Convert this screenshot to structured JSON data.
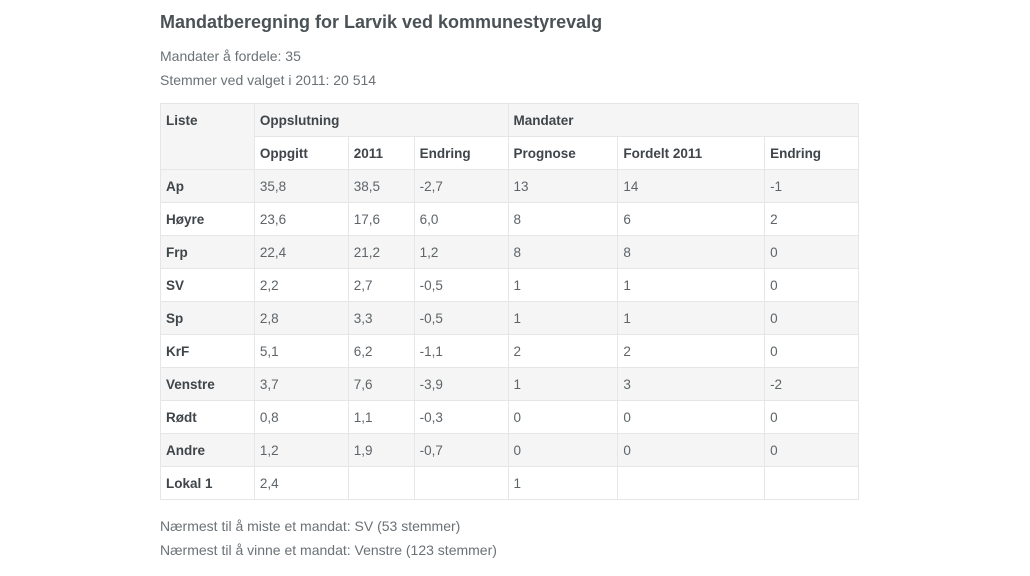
{
  "title": "Mandatberegning for Larvik ved kommunestyrevalg",
  "meta": {
    "seats": "Mandater å fordele: 35",
    "votes": "Stemmer ved valget i 2011: 20 514"
  },
  "table": {
    "header_top": {
      "liste": "Liste",
      "oppslutning": "Oppslutning",
      "mandater": "Mandater"
    },
    "header_sub": [
      "Oppgitt",
      "2011",
      "Endring",
      "Prognose",
      "Fordelt 2011",
      "Endring"
    ],
    "rows": [
      {
        "party": "Ap",
        "oppgitt": "35,8",
        "y2011": "38,5",
        "endring": "-2,7",
        "prognose": "13",
        "fordelt": "14",
        "mandat_endring": "-1"
      },
      {
        "party": "Høyre",
        "oppgitt": "23,6",
        "y2011": "17,6",
        "endring": "6,0",
        "prognose": "8",
        "fordelt": "6",
        "mandat_endring": "2"
      },
      {
        "party": "Frp",
        "oppgitt": "22,4",
        "y2011": "21,2",
        "endring": "1,2",
        "prognose": "8",
        "fordelt": "8",
        "mandat_endring": "0"
      },
      {
        "party": "SV",
        "oppgitt": "2,2",
        "y2011": "2,7",
        "endring": "-0,5",
        "prognose": "1",
        "fordelt": "1",
        "mandat_endring": "0"
      },
      {
        "party": "Sp",
        "oppgitt": "2,8",
        "y2011": "3,3",
        "endring": "-0,5",
        "prognose": "1",
        "fordelt": "1",
        "mandat_endring": "0"
      },
      {
        "party": "KrF",
        "oppgitt": "5,1",
        "y2011": "6,2",
        "endring": "-1,1",
        "prognose": "2",
        "fordelt": "2",
        "mandat_endring": "0"
      },
      {
        "party": "Venstre",
        "oppgitt": "3,7",
        "y2011": "7,6",
        "endring": "-3,9",
        "prognose": "1",
        "fordelt": "3",
        "mandat_endring": "-2"
      },
      {
        "party": "Rødt",
        "oppgitt": "0,8",
        "y2011": "1,1",
        "endring": "-0,3",
        "prognose": "0",
        "fordelt": "0",
        "mandat_endring": "0"
      },
      {
        "party": "Andre",
        "oppgitt": "1,2",
        "y2011": "1,9",
        "endring": "-0,7",
        "prognose": "0",
        "fordelt": "0",
        "mandat_endring": "0"
      },
      {
        "party": "Lokal 1",
        "oppgitt": "2,4",
        "y2011": "",
        "endring": "",
        "prognose": "1",
        "fordelt": "",
        "mandat_endring": ""
      }
    ]
  },
  "footer": {
    "lose": "Nærmest til å miste et mandat: SV (53 stemmer)",
    "win": "Nærmest til å vinne et mandat: Venstre (123 stemmer)"
  }
}
